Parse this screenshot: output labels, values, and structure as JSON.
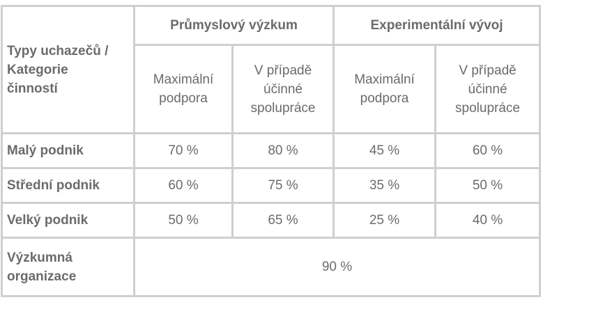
{
  "table": {
    "corner_label_lines": [
      "Typy uchazečů /",
      "Kategorie",
      "činností"
    ],
    "group_headers": [
      "Průmyslový výzkum",
      "Experimentální vývoj"
    ],
    "sub_headers": [
      [
        "Maximální",
        "podpora"
      ],
      [
        "V případě",
        "účinné",
        "spolupráce"
      ],
      [
        "Maximální",
        "podpora"
      ],
      [
        "V případě",
        "účinné",
        "spolupráce"
      ]
    ],
    "rows": [
      {
        "label": "Malý podnik",
        "values": [
          "70 %",
          "80 %",
          "45 %",
          "60 %"
        ]
      },
      {
        "label": "Střední podnik",
        "values": [
          "60 %",
          "75 %",
          "35 %",
          "50 %"
        ]
      },
      {
        "label": "Velký podnik",
        "values": [
          "50 %",
          "65 %",
          "25 %",
          "40 %"
        ]
      }
    ],
    "last_row": {
      "label_lines": [
        "Výzkumná",
        "organizace"
      ],
      "value": "90 %"
    }
  }
}
